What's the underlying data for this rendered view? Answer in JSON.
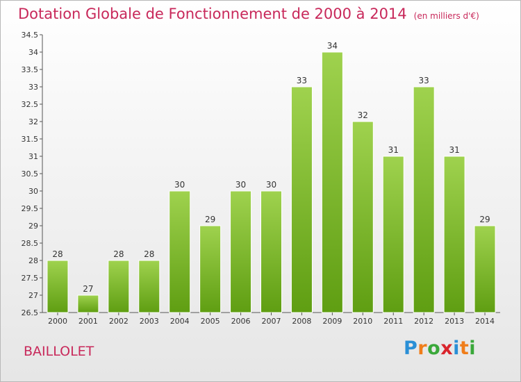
{
  "title": "Dotation Globale de Fonctionnement de 2000 à 2014",
  "subtitle": "(en milliers d'€)",
  "commune": "BAILLOLET",
  "logo": {
    "letters": [
      "P",
      "r",
      "o",
      "x",
      "i",
      "t",
      "i"
    ],
    "colors": [
      "#2a8fd6",
      "#f07d1a",
      "#3aa83a",
      "#d9242c",
      "#2a8fd6",
      "#f07d1a",
      "#3aa83a"
    ]
  },
  "colors": {
    "bar_top": "#9fd24e",
    "bar_bottom": "#5f9e12",
    "title": "#c8285a"
  },
  "chart_data": {
    "type": "bar",
    "categories": [
      "2000",
      "2001",
      "2002",
      "2003",
      "2004",
      "2005",
      "2006",
      "2007",
      "2008",
      "2009",
      "2010",
      "2011",
      "2012",
      "2013",
      "2014"
    ],
    "values": [
      28,
      27,
      28,
      28,
      30,
      29,
      30,
      30,
      33,
      34,
      32,
      31,
      33,
      31,
      29
    ],
    "ylim": [
      26.5,
      34.5
    ],
    "yticks": [
      "26.5",
      "27",
      "27.5",
      "28",
      "28.5",
      "29",
      "29.5",
      "30",
      "30.5",
      "31",
      "31.5",
      "32",
      "32.5",
      "33",
      "33.5",
      "34",
      "34.5"
    ],
    "grid": false,
    "xlabel": "",
    "ylabel": ""
  }
}
